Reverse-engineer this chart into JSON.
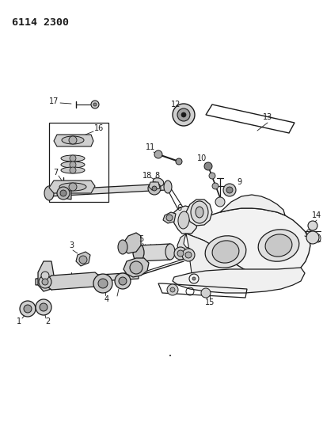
{
  "title_code": "6114 2300",
  "bg": "#ffffff",
  "lc": "#1a1a1a",
  "fig_w": 4.08,
  "fig_h": 5.33,
  "dpi": 100
}
